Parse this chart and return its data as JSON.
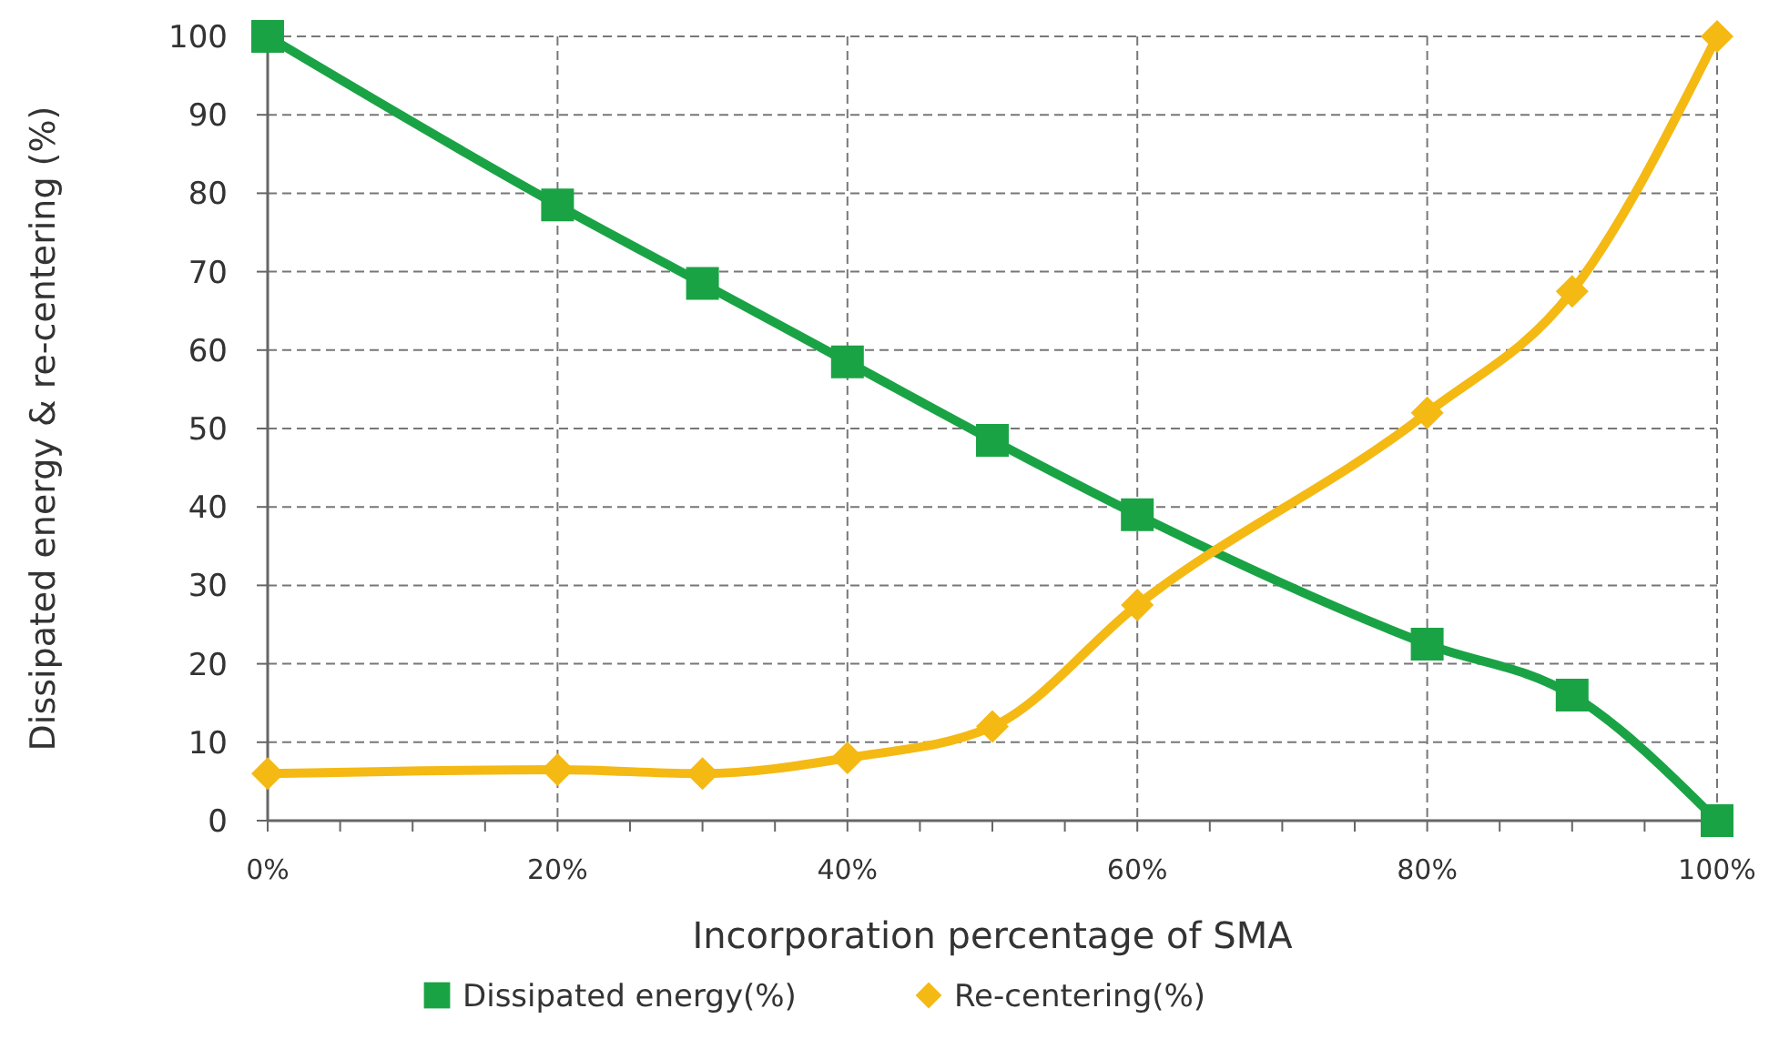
{
  "chart_data": {
    "type": "line",
    "xlabel": "Incorporation percentage of SMA",
    "ylabel": "Dissipated energy & re-centering (%)",
    "xlim": [
      0,
      100
    ],
    "xticks": [
      {
        "value": 0,
        "label": "0%"
      },
      {
        "value": 5,
        "label": null
      },
      {
        "value": 10,
        "label": null
      },
      {
        "value": 15,
        "label": null
      },
      {
        "value": 20,
        "label": "20%"
      },
      {
        "value": 25,
        "label": null
      },
      {
        "value": 30,
        "label": null
      },
      {
        "value": 35,
        "label": null
      },
      {
        "value": 40,
        "label": "40%"
      },
      {
        "value": 45,
        "label": null
      },
      {
        "value": 50,
        "label": null
      },
      {
        "value": 55,
        "label": null
      },
      {
        "value": 60,
        "label": "60%"
      },
      {
        "value": 65,
        "label": null
      },
      {
        "value": 70,
        "label": null
      },
      {
        "value": 75,
        "label": null
      },
      {
        "value": 80,
        "label": "80%"
      },
      {
        "value": 85,
        "label": null
      },
      {
        "value": 90,
        "label": null
      },
      {
        "value": 95,
        "label": null
      },
      {
        "value": 100,
        "label": "100%"
      }
    ],
    "ylim": [
      0,
      100
    ],
    "yticks": [
      0,
      10,
      20,
      30,
      40,
      50,
      60,
      70,
      80,
      90,
      100
    ],
    "grid": true,
    "legend": "bottom",
    "series": [
      {
        "name": "Dissipated energy(%)",
        "color": "#1aa345",
        "marker": "square",
        "x": [
          0,
          20,
          30,
          40,
          50,
          60,
          80,
          90,
          100
        ],
        "values": [
          100,
          78.5,
          68.5,
          58.5,
          48.5,
          39,
          22.5,
          16,
          0
        ]
      },
      {
        "name": "Re-centering(%)",
        "color": "#f5b914",
        "marker": "diamond",
        "x": [
          0,
          20,
          30,
          40,
          50,
          60,
          80,
          90,
          100
        ],
        "values": [
          6,
          6.5,
          6,
          8,
          12,
          27.5,
          52,
          67.5,
          100
        ]
      }
    ]
  }
}
